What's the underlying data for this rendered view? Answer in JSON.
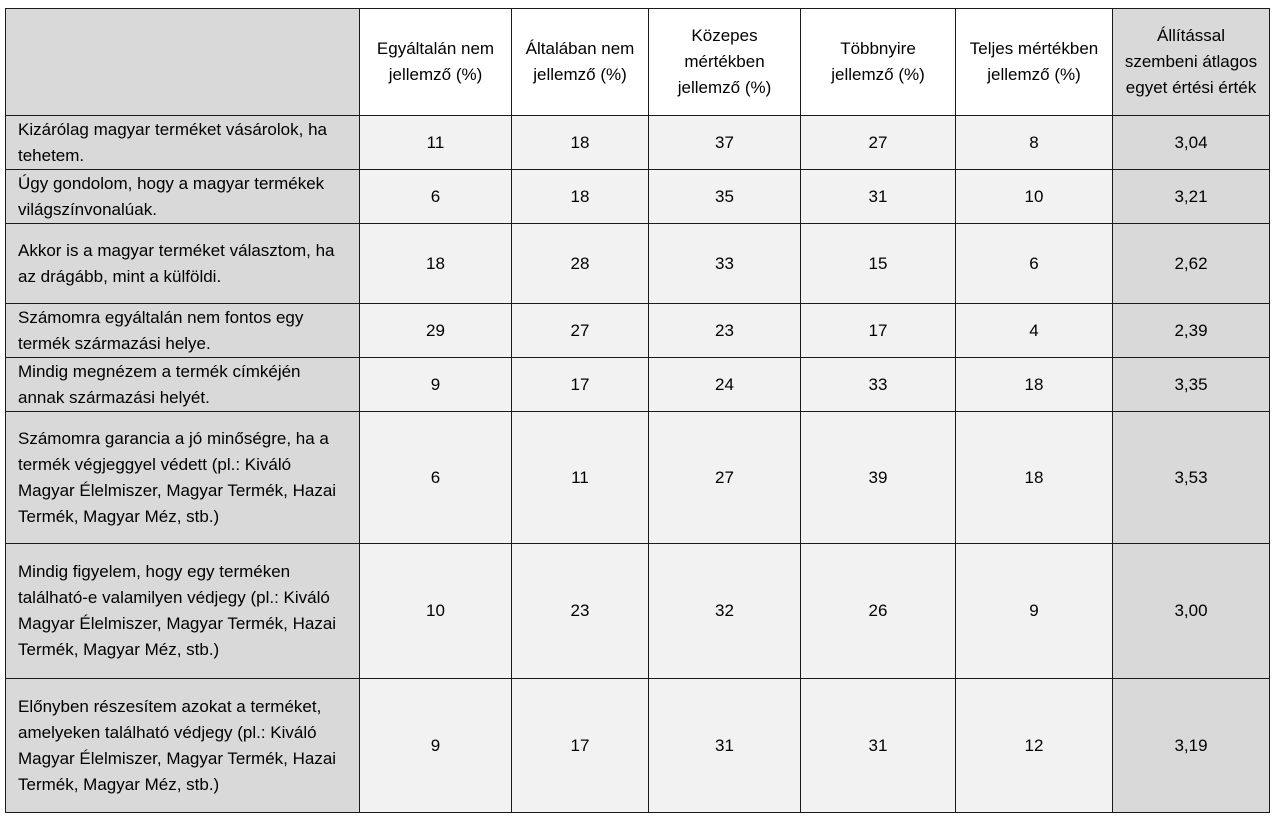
{
  "header": {
    "corner": "",
    "columns": [
      "Egyáltalán nem jellemző (%)",
      "Általában nem jellemző (%)",
      "Közepes mértékben jellemző (%)",
      "Többnyire jellemző (%)",
      "Teljes mértékben jellemző (%)",
      "Állítással szembeni átlagos egyet értési érték"
    ]
  },
  "rows": [
    {
      "statement": "Kizárólag magyar terméket vásárolok, ha tehetem.",
      "values": [
        "11",
        "18",
        "37",
        "27",
        "8"
      ],
      "avg": "3,04"
    },
    {
      "statement": "Úgy gondolom, hogy a magyar termékek világszínvonalúak.",
      "values": [
        "6",
        "18",
        "35",
        "31",
        "10"
      ],
      "avg": "3,21"
    },
    {
      "statement": "Akkor is a magyar terméket választom, ha az drágább, mint a külföldi.",
      "values": [
        "18",
        "28",
        "33",
        "15",
        "6"
      ],
      "avg": "2,62"
    },
    {
      "statement": "Számomra egyáltalán nem fontos egy termék származási helye.",
      "values": [
        "29",
        "27",
        "23",
        "17",
        "4"
      ],
      "avg": "2,39"
    },
    {
      "statement": "Mindig megnézem a termék címkéjén annak származási helyét.",
      "values": [
        "9",
        "17",
        "24",
        "33",
        "18"
      ],
      "avg": "3,35"
    },
    {
      "statement": "Számomra garancia a jó minőségre, ha a termék végjeggyel védett (pl.: Kiváló Magyar Élelmiszer, Magyar Termék, Hazai Termék, Magyar Méz, stb.)",
      "values": [
        "6",
        "11",
        "27",
        "39",
        "18"
      ],
      "avg": "3,53"
    },
    {
      "statement": "Mindig figyelem, hogy egy terméken található-e valamilyen védjegy (pl.: Kiváló Magyar Élelmiszer, Magyar Termék, Hazai Termék, Magyar Méz, stb.)",
      "values": [
        "10",
        "23",
        "32",
        "26",
        "9"
      ],
      "avg": "3,00"
    },
    {
      "statement": "Előnyben részesítem azokat a terméket, amelyeken található védjegy (pl.: Kiváló Magyar Élelmiszer, Magyar Termék, Hazai Termék, Magyar Méz, stb.)",
      "values": [
        "9",
        "17",
        "31",
        "31",
        "12"
      ],
      "avg": "3,19"
    }
  ]
}
